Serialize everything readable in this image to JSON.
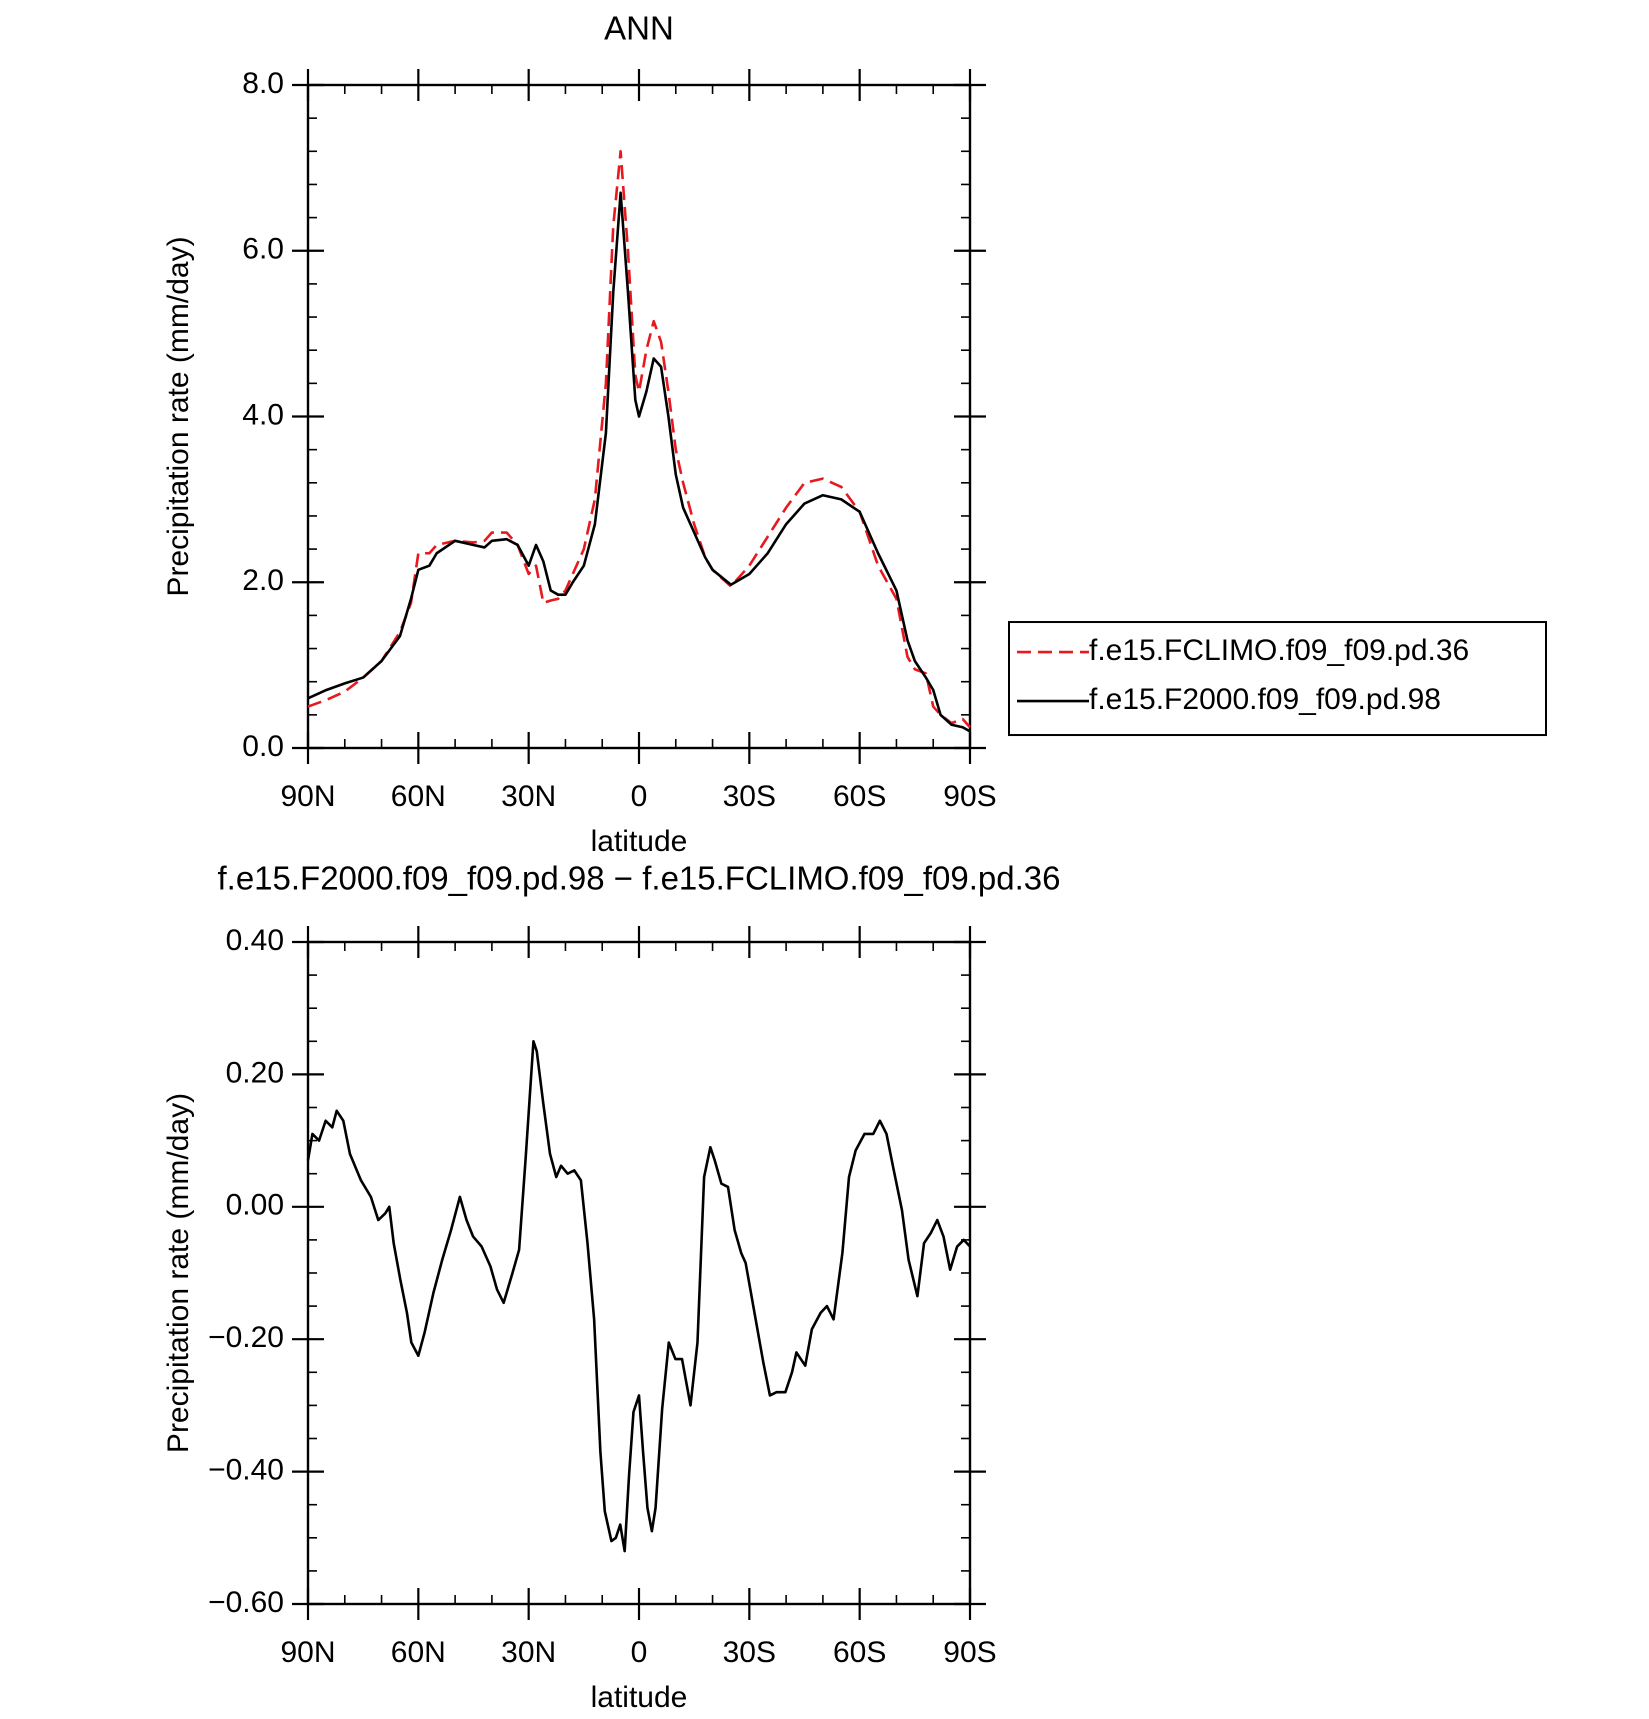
{
  "chart_data": [
    {
      "type": "line",
      "title": "ANN",
      "xlabel": "latitude",
      "ylabel": "Precipitation rate (mm/day)",
      "xlim": [
        90,
        -90
      ],
      "ylim": [
        0,
        8
      ],
      "xticks": [
        {
          "value": 90,
          "label": "90N"
        },
        {
          "value": 60,
          "label": "60N"
        },
        {
          "value": 30,
          "label": "30N"
        },
        0,
        {
          "value": -30,
          "label": "30S"
        },
        {
          "value": -60,
          "label": "60S"
        },
        {
          "value": -90,
          "label": "90S"
        }
      ],
      "yticks": [
        {
          "value": 0,
          "label": "0.0"
        },
        {
          "value": 2,
          "label": "2.0"
        },
        {
          "value": 4,
          "label": "4.0"
        },
        {
          "value": 6,
          "label": "6.0"
        },
        {
          "value": 8,
          "label": "8.0"
        }
      ],
      "xminorticks": [
        90,
        80,
        70,
        60,
        50,
        40,
        30,
        20,
        10,
        0,
        -10,
        -20,
        -30,
        -40,
        -50,
        -60,
        -70,
        -80,
        -90
      ],
      "yminorticks": [
        0,
        0.4,
        0.8,
        1.2,
        1.6,
        2,
        2.4,
        2.8,
        3.2,
        3.6,
        4,
        4.4,
        4.8,
        5.2,
        5.6,
        6,
        6.4,
        6.8,
        7.2,
        7.6,
        8
      ],
      "legend": "right",
      "x": [
        90,
        85,
        80,
        75,
        70,
        65,
        62,
        60,
        57,
        55,
        50,
        45,
        42,
        40,
        36,
        33,
        30,
        28,
        26,
        24,
        22,
        20,
        18,
        15,
        12,
        9,
        7,
        5,
        3,
        1,
        0,
        -2,
        -4,
        -6,
        -8,
        -10,
        -12,
        -15,
        -18,
        -20,
        -25,
        -30,
        -35,
        -40,
        -45,
        -50,
        -55,
        -60,
        -65,
        -70,
        -73,
        -75,
        -78,
        -80,
        -82,
        -85,
        -88,
        -90
      ],
      "series": [
        {
          "name": "f.e15.FCLIMO.f09_f09.pd.36",
          "color": "#e8191e",
          "dashed": true,
          "values": [
            0.5,
            0.58,
            0.68,
            0.85,
            1.05,
            1.4,
            1.75,
            2.35,
            2.35,
            2.45,
            2.5,
            2.48,
            2.5,
            2.6,
            2.6,
            2.45,
            2.1,
            2.2,
            1.75,
            1.78,
            1.8,
            1.9,
            2.1,
            2.4,
            3.0,
            4.4,
            6.3,
            7.2,
            6.0,
            4.5,
            4.3,
            4.8,
            5.15,
            4.9,
            4.3,
            3.6,
            3.2,
            2.7,
            2.3,
            2.15,
            1.95,
            2.2,
            2.55,
            2.9,
            3.2,
            3.25,
            3.15,
            2.85,
            2.2,
            1.8,
            1.1,
            0.95,
            0.9,
            0.5,
            0.4,
            0.3,
            0.35,
            0.25
          ]
        },
        {
          "name": "f.e15.F2000.f09_f09.pd.98",
          "color": "#000000",
          "dashed": false,
          "values": [
            0.6,
            0.7,
            0.78,
            0.85,
            1.05,
            1.35,
            1.8,
            2.15,
            2.2,
            2.35,
            2.5,
            2.45,
            2.42,
            2.5,
            2.52,
            2.45,
            2.2,
            2.45,
            2.25,
            1.9,
            1.85,
            1.85,
            2.0,
            2.2,
            2.7,
            3.8,
            5.5,
            6.7,
            5.5,
            4.2,
            4.0,
            4.3,
            4.7,
            4.6,
            4.0,
            3.3,
            2.9,
            2.6,
            2.3,
            2.15,
            1.97,
            2.1,
            2.35,
            2.7,
            2.95,
            3.05,
            3.0,
            2.85,
            2.35,
            1.9,
            1.3,
            1.05,
            0.85,
            0.7,
            0.4,
            0.28,
            0.25,
            0.2
          ]
        }
      ]
    },
    {
      "type": "line",
      "title": "f.e15.F2000.f09_f09.pd.98 − f.e15.FCLIMO.f09_f09.pd.36",
      "xlabel": "latitude",
      "ylabel": "Precipitation rate (mm/day)",
      "xlim": [
        90,
        -90
      ],
      "ylim": [
        -0.6,
        0.4
      ],
      "xticks": [
        {
          "value": 90,
          "label": "90N"
        },
        {
          "value": 60,
          "label": "60N"
        },
        {
          "value": 30,
          "label": "30N"
        },
        0,
        {
          "value": -30,
          "label": "30S"
        },
        {
          "value": -60,
          "label": "60S"
        },
        {
          "value": -90,
          "label": "90S"
        }
      ],
      "yticks": [
        {
          "value": -0.6,
          "label": "−0.60"
        },
        {
          "value": -0.4,
          "label": "−0.40"
        },
        {
          "value": -0.2,
          "label": "−0.20"
        },
        {
          "value": 0,
          "label": "0.00"
        },
        {
          "value": 0.2,
          "label": "0.20"
        },
        {
          "value": 0.4,
          "label": "0.40"
        }
      ],
      "xminorticks": [
        90,
        80,
        70,
        60,
        50,
        40,
        30,
        20,
        10,
        0,
        -10,
        -20,
        -30,
        -40,
        -50,
        -60,
        -70,
        -80,
        -90
      ],
      "yminorticks": [
        -0.6,
        -0.55,
        -0.5,
        -0.45,
        -0.4,
        -0.35,
        -0.3,
        -0.25,
        -0.2,
        -0.15,
        -0.1,
        -0.05,
        0,
        0.05,
        0.1,
        0.15,
        0.2,
        0.25,
        0.3,
        0.35,
        0.4
      ],
      "x": [
        90,
        88.8,
        87,
        85.2,
        83.4,
        82.2,
        80.4,
        78.6,
        75.6,
        72.9,
        70.9,
        69,
        67.9,
        66.7,
        64.9,
        63.1,
        61.9,
        60,
        58.3,
        55.9,
        53.5,
        51.1,
        48.7,
        46.9,
        45.1,
        42.8,
        40.4,
        38.6,
        36.8,
        34.4,
        32.6,
        30.8,
        28.7,
        27.8,
        26,
        24.2,
        22.5,
        21.2,
        19.4,
        17.6,
        15.8,
        14,
        12.2,
        10.5,
        9.3,
        7.5,
        6.3,
        5.1,
        3.9,
        2.7,
        1.5,
        0,
        -1.1,
        -2.3,
        -3.5,
        -4.5,
        -6.3,
        -8.1,
        -9.9,
        -11.7,
        -14,
        -15.9,
        -17.7,
        -19.4,
        -20.6,
        -22.4,
        -24.2,
        -26,
        -27.8,
        -29,
        -31.4,
        -33.8,
        -35.6,
        -37.4,
        -39.8,
        -41.6,
        -42.8,
        -45.2,
        -47,
        -49.4,
        -51.1,
        -52.9,
        -55.3,
        -57.1,
        -58.9,
        -61.3,
        -63.7,
        -65.5,
        -67.3,
        -69.1,
        -71.5,
        -73.3,
        -75.7,
        -77.5,
        -79.3,
        -81.1,
        -82.8,
        -84.6,
        -86.5,
        -88.3,
        -90
      ],
      "series": [
        {
          "color": "#000000",
          "dashed": false,
          "values": [
            0.07,
            0.11,
            0.1,
            0.13,
            0.12,
            0.145,
            0.13,
            0.08,
            0.04,
            0.015,
            -0.02,
            -0.01,
            0.0,
            -0.055,
            -0.11,
            -0.16,
            -0.205,
            -0.225,
            -0.19,
            -0.13,
            -0.08,
            -0.035,
            0.015,
            -0.02,
            -0.045,
            -0.06,
            -0.09,
            -0.125,
            -0.145,
            -0.1,
            -0.065,
            0.075,
            0.25,
            0.235,
            0.155,
            0.08,
            0.045,
            0.062,
            0.05,
            0.055,
            0.04,
            -0.055,
            -0.17,
            -0.37,
            -0.46,
            -0.505,
            -0.5,
            -0.48,
            -0.52,
            -0.405,
            -0.31,
            -0.285,
            -0.37,
            -0.455,
            -0.49,
            -0.455,
            -0.305,
            -0.205,
            -0.23,
            -0.23,
            -0.3,
            -0.205,
            0.045,
            0.09,
            0.07,
            0.035,
            0.03,
            -0.035,
            -0.07,
            -0.085,
            -0.16,
            -0.235,
            -0.285,
            -0.28,
            -0.28,
            -0.25,
            -0.22,
            -0.24,
            -0.185,
            -0.16,
            -0.15,
            -0.17,
            -0.07,
            0.045,
            0.085,
            0.11,
            0.11,
            0.13,
            0.11,
            0.06,
            -0.005,
            -0.08,
            -0.135,
            -0.055,
            -0.04,
            -0.02,
            -0.045,
            -0.095,
            -0.06,
            -0.05,
            -0.06
          ]
        }
      ]
    }
  ]
}
